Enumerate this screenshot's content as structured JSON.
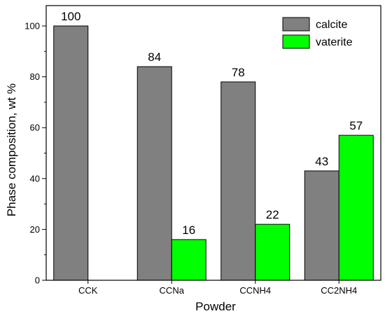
{
  "chart_data": {
    "type": "bar",
    "title": "",
    "xlabel": "Powder",
    "ylabel": "Phase composition, wt %",
    "categories": [
      "CCK",
      "CCNa",
      "CCNH4",
      "CC2NH4"
    ],
    "series": [
      {
        "name": "calcite",
        "color": "#808080",
        "values": [
          100,
          84,
          78,
          43
        ]
      },
      {
        "name": "vaterite",
        "color": "#00ff00",
        "values": [
          null,
          16,
          22,
          57
        ]
      }
    ],
    "data_labels": [
      [
        "100",
        "84",
        "78",
        "43"
      ],
      [
        "",
        "16",
        "22",
        "57"
      ]
    ],
    "ylim": [
      0,
      108
    ],
    "yticks": [
      0,
      20,
      40,
      60,
      80,
      100
    ],
    "yticks_minor_step": 10,
    "legend_position": "top-right",
    "grid": false
  }
}
